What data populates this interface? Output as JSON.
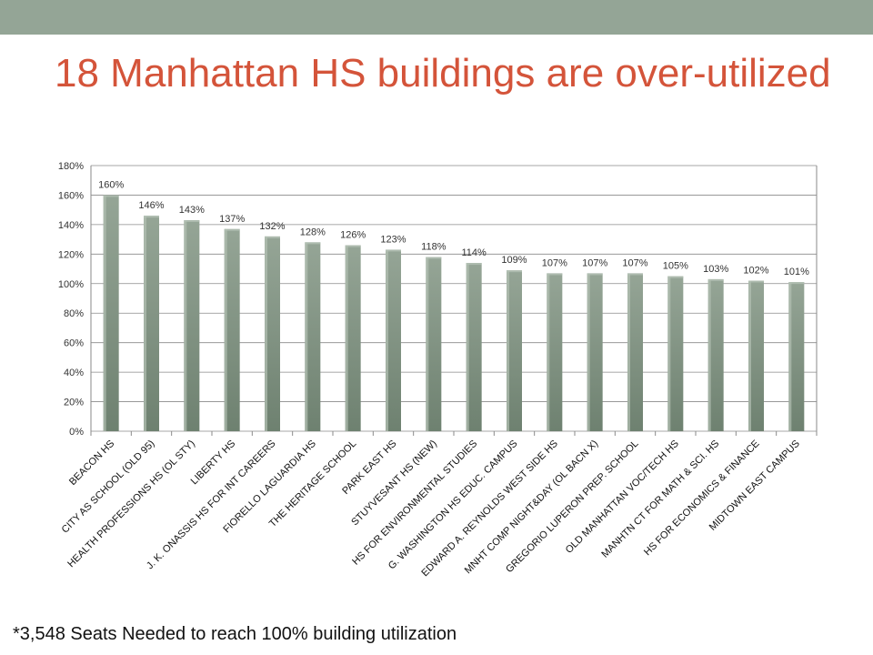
{
  "slide": {
    "title": "18 Manhattan HS buildings are over-utilized",
    "footnote": "*3,548 Seats Needed to reach 100% building utilization"
  },
  "colors": {
    "top_bar": "#94a596",
    "title": "#d4543a",
    "bar_top": "#95a596",
    "bar_bottom": "#6e8170",
    "bar_side": "#b3c0b4"
  },
  "chart_data": {
    "type": "bar",
    "categories": [
      "BEACON HS",
      "CITY AS SCHOOL (OLD 95)",
      "HEALTH PROFESSIONS HS (OL STY)",
      "LIBERTY HS",
      "J. K. ONASSIS HS FOR INT CAREERS",
      "FIORELLO LAGUARDIA HS",
      "THE HERITAGE SCHOOL",
      "PARK EAST HS",
      "STUYVESANT HS (NEW)",
      "HS FOR ENVIRONMENTAL STUDIES",
      "G. WASHINGTON HS EDUC. CAMPUS",
      "EDWARD A. REYNOLDS WEST SIDE HS",
      "MNHT COMP NIGHT&DAY (OL BACN X)",
      "GREGORIO LUPERON PREP. SCHOOL",
      "OLD MANHATTAN VOC/TECH HS",
      "MANHTN CT FOR MATH & SCI. HS",
      "HS FOR ECONOMICS & FINANCE",
      "MIDTOWN EAST CAMPUS"
    ],
    "values": [
      160,
      146,
      143,
      137,
      132,
      128,
      126,
      123,
      118,
      114,
      109,
      107,
      107,
      107,
      105,
      103,
      102,
      101
    ],
    "value_labels": [
      "160%",
      "146%",
      "143%",
      "137%",
      "132%",
      "128%",
      "126%",
      "123%",
      "118%",
      "114%",
      "109%",
      "107%",
      "107%",
      "107%",
      "105%",
      "103%",
      "102%",
      "101%"
    ],
    "ylim": [
      0,
      180
    ],
    "yticks": [
      0,
      20,
      40,
      60,
      80,
      100,
      120,
      140,
      160,
      180
    ],
    "ytick_labels": [
      "0%",
      "20%",
      "40%",
      "60%",
      "80%",
      "100%",
      "120%",
      "140%",
      "160%",
      "180%"
    ],
    "grid": true,
    "title": "",
    "xlabel": "",
    "ylabel": ""
  }
}
